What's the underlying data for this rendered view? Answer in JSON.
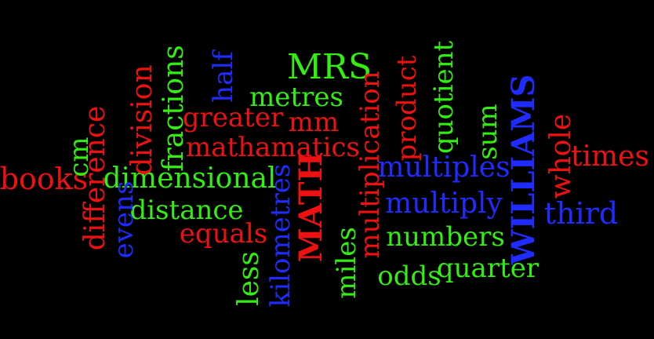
{
  "words": {
    "mrs": "MRS",
    "metres": "metres",
    "mm": "mm",
    "greater": "greater",
    "mathamatics": "mathamatics",
    "books": "books",
    "dimensional": "dimensional",
    "distance": "distance",
    "equals": "equals",
    "multiples": "multiples",
    "multiply": "multiply",
    "numbers": "numbers",
    "odds": "odds",
    "quarter": "quarter",
    "times": "times",
    "third": "third",
    "cm": "cm",
    "difference": "difference",
    "evens": "evens",
    "division": "division",
    "fractions": "fractions",
    "half": "half",
    "less": "less",
    "kilometres": "kilometres",
    "math": "MATH",
    "miles": "miles",
    "multiplication": "multiplication",
    "product": "product",
    "quotient": "quotient",
    "sum": "sum",
    "williams": "WILLIAMS",
    "whole": "whole"
  },
  "colors": {
    "background": "#000000",
    "red": "#ee1111",
    "green": "#33ee11",
    "blue": "#1f2bff"
  }
}
